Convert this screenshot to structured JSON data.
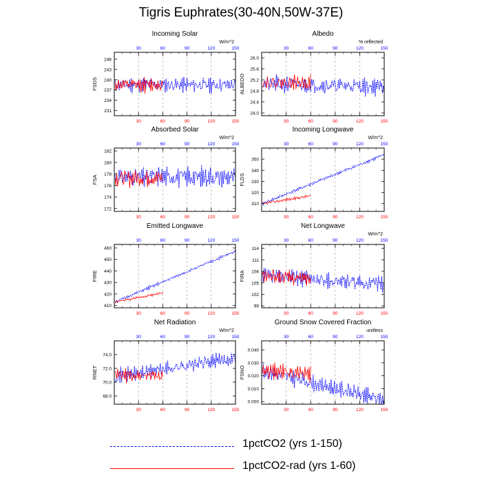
{
  "title": "Tigris Euphrates(30-40N,50W-37E)",
  "colors": {
    "rcp": "#0000ff",
    "rad": "#ff0000",
    "axis": "#000000",
    "grid": "#999999"
  },
  "legend": [
    {
      "label": "1pctCO2 (yrs 1-150)",
      "color": "#0000ff",
      "style": "dashed"
    },
    {
      "label": "1pctCO2-rad (yrs 1-60)",
      "color": "#ff0000",
      "style": "solid"
    }
  ],
  "chart_data": [
    {
      "type": "line",
      "title": "Incoming Solar",
      "ylabel": "FSDS",
      "unit": "W/m^2",
      "xlim": [
        0,
        150
      ],
      "ylim": [
        229.5,
        248
      ],
      "yticks": [
        231,
        234,
        237,
        240,
        243,
        246
      ],
      "xticks": [
        30,
        60,
        90,
        120,
        150
      ],
      "xticks_top": [
        30,
        60,
        90,
        120,
        150
      ],
      "grid_x": [
        30,
        60,
        90,
        120
      ],
      "series": [
        {
          "name": "1pctCO2 (yrs 1-150)",
          "x_start": 1,
          "x_end": 150,
          "y_start": 238.5,
          "y_end": 238.5,
          "amplitude": 3.2,
          "seed": 11
        },
        {
          "name": "1pctCO2-rad (yrs 1-60)",
          "x_start": 1,
          "x_end": 60,
          "y_start": 238.5,
          "y_end": 238.5,
          "amplitude": 3.0,
          "seed": 12
        }
      ]
    },
    {
      "type": "line",
      "title": "Albedo",
      "ylabel": "ALBEDO",
      "unit": "% reflected",
      "xlim": [
        0,
        150
      ],
      "ylim": [
        23.9,
        26.2
      ],
      "yticks": [
        24.0,
        24.4,
        24.8,
        25.2,
        25.6,
        26.0
      ],
      "yticklabels": [
        "24.0",
        "24.4",
        "24.8",
        "25.2",
        "25.6",
        "26.0"
      ],
      "xticks": [
        30,
        60,
        90,
        120,
        150
      ],
      "xticks_top": [
        30,
        60,
        90,
        120,
        150
      ],
      "grid_x": [
        30,
        60,
        90,
        120
      ],
      "series": [
        {
          "name": "1pctCO2 (yrs 1-150)",
          "x_start": 1,
          "x_end": 150,
          "y_start": 25.05,
          "y_end": 24.95,
          "amplitude": 0.45,
          "seed": 21
        },
        {
          "name": "1pctCO2-rad (yrs 1-60)",
          "x_start": 1,
          "x_end": 60,
          "y_start": 25.1,
          "y_end": 25.1,
          "amplitude": 0.4,
          "seed": 22
        }
      ]
    },
    {
      "type": "line",
      "title": "Absorbed Solar",
      "ylabel": "FSA",
      "unit": "W/m^2",
      "xlim": [
        0,
        150
      ],
      "ylim": [
        171.5,
        182.5
      ],
      "yticks": [
        172,
        174,
        176,
        178,
        180,
        182
      ],
      "xticks": [
        30,
        60,
        90,
        120,
        150
      ],
      "xticks_top": [
        30,
        60,
        90,
        120,
        150
      ],
      "grid_x": [
        30,
        60,
        90,
        120
      ],
      "series": [
        {
          "name": "1pctCO2 (yrs 1-150)",
          "x_start": 1,
          "x_end": 150,
          "y_start": 177.5,
          "y_end": 177.5,
          "amplitude": 2.6,
          "seed": 31
        },
        {
          "name": "1pctCO2-rad (yrs 1-60)",
          "x_start": 1,
          "x_end": 60,
          "y_start": 177.3,
          "y_end": 177.3,
          "amplitude": 2.4,
          "seed": 32
        }
      ]
    },
    {
      "type": "line",
      "title": "Incoming Longwave",
      "ylabel": "FLDS",
      "unit": "W/m^2",
      "xlim": [
        0,
        150
      ],
      "ylim": [
        303,
        360
      ],
      "yticks": [
        310,
        320,
        330,
        340,
        350
      ],
      "xticks": [
        30,
        60,
        90,
        120,
        150
      ],
      "xticks_top": [
        30,
        60,
        90,
        120,
        150
      ],
      "grid_x": [
        30,
        60,
        90,
        120
      ],
      "series": [
        {
          "name": "1pctCO2 (yrs 1-150)",
          "x_start": 1,
          "x_end": 150,
          "y_start": 310,
          "y_end": 354,
          "amplitude": 2.2,
          "seed": 41
        },
        {
          "name": "1pctCO2-rad (yrs 1-60)",
          "x_start": 1,
          "x_end": 60,
          "y_start": 310,
          "y_end": 317,
          "amplitude": 2.0,
          "seed": 42
        }
      ]
    },
    {
      "type": "line",
      "title": "Emitted Longwave",
      "ylabel": "FIRE",
      "unit": "",
      "xlim": [
        0,
        150
      ],
      "ylim": [
        408,
        463
      ],
      "yticks": [
        410,
        420,
        430,
        440,
        450,
        460
      ],
      "xticks": [
        30,
        60,
        90,
        120,
        150
      ],
      "xticks_top": [
        30,
        60,
        90,
        120,
        150
      ],
      "grid_x": [
        30,
        60,
        90,
        120
      ],
      "series": [
        {
          "name": "1pctCO2 (yrs 1-150)",
          "x_start": 1,
          "x_end": 150,
          "y_start": 413,
          "y_end": 457,
          "amplitude": 1.8,
          "seed": 51
        },
        {
          "name": "1pctCO2-rad (yrs 1-60)",
          "x_start": 1,
          "x_end": 60,
          "y_start": 413,
          "y_end": 421,
          "amplitude": 1.6,
          "seed": 52
        }
      ]
    },
    {
      "type": "line",
      "title": "Net Longwave",
      "ylabel": "FIRA",
      "unit": "W/m^2",
      "xlim": [
        0,
        150
      ],
      "ylim": [
        98.5,
        115
      ],
      "yticks": [
        99,
        102,
        105,
        108,
        111,
        114
      ],
      "xticks": [
        30,
        60,
        90,
        120,
        150
      ],
      "xticks_top": [
        30,
        60,
        90,
        120,
        150
      ],
      "grid_x": [
        30,
        60,
        90,
        120
      ],
      "series": [
        {
          "name": "1pctCO2 (yrs 1-150)",
          "x_start": 1,
          "x_end": 150,
          "y_start": 107,
          "y_end": 104.5,
          "amplitude": 3.0,
          "seed": 61
        },
        {
          "name": "1pctCO2-rad (yrs 1-60)",
          "x_start": 1,
          "x_end": 60,
          "y_start": 107,
          "y_end": 106,
          "amplitude": 2.8,
          "seed": 62
        }
      ]
    },
    {
      "type": "line",
      "title": "Net Radiation",
      "ylabel": "RNET",
      "unit": "W/m^2",
      "xlim": [
        0,
        150
      ],
      "ylim": [
        66.8,
        76
      ],
      "yticks": [
        68.0,
        70.0,
        72.0,
        74.0
      ],
      "yticklabels": [
        "68.0",
        "70.0",
        "72.0",
        "74.0"
      ],
      "xticks": [
        30,
        60,
        90,
        120,
        150
      ],
      "xticks_top": [
        30,
        60,
        90,
        120,
        150
      ],
      "grid_x": [
        30,
        60,
        90,
        120
      ],
      "series": [
        {
          "name": "1pctCO2 (yrs 1-150)",
          "x_start": 1,
          "x_end": 150,
          "y_start": 70.8,
          "y_end": 73.5,
          "amplitude": 1.6,
          "seed": 71
        },
        {
          "name": "1pctCO2-rad (yrs 1-60)",
          "x_start": 1,
          "x_end": 60,
          "y_start": 71.0,
          "y_end": 71.0,
          "amplitude": 1.4,
          "seed": 72
        }
      ]
    },
    {
      "type": "line",
      "title": "Ground Snow Covered Fraction",
      "ylabel": "FSNO",
      "unit": "unitless",
      "xlim": [
        0,
        150
      ],
      "ylim": [
        -0.002,
        0.047
      ],
      "yticks": [
        0.0,
        0.01,
        0.02,
        0.03,
        0.04
      ],
      "yticklabels": [
        "0.000",
        "0.010",
        "0.020",
        "0.030",
        "0.040"
      ],
      "xticks": [
        30,
        60,
        90,
        120,
        150
      ],
      "xticks_top": [
        30,
        60,
        90,
        120,
        150
      ],
      "grid_x": [
        30,
        60,
        90,
        120
      ],
      "series": [
        {
          "name": "1pctCO2 (yrs 1-150)",
          "x_start": 1,
          "x_end": 150,
          "y_start": 0.024,
          "y_end": 0.001,
          "amplitude": 0.009,
          "seed": 81
        },
        {
          "name": "1pctCO2-rad (yrs 1-60)",
          "x_start": 1,
          "x_end": 60,
          "y_start": 0.024,
          "y_end": 0.021,
          "amplitude": 0.009,
          "seed": 82
        }
      ]
    }
  ]
}
